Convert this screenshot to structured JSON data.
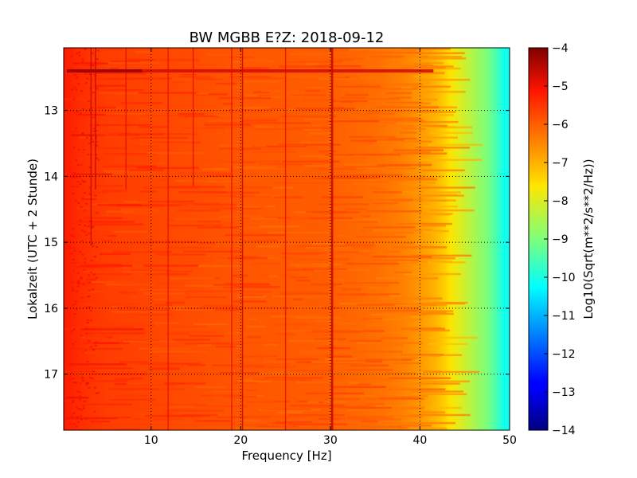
{
  "chart_data": {
    "type": "heatmap",
    "title": "BW MGBB E?Z: 2018-09-12",
    "xlabel": "Frequency [Hz]",
    "ylabel": "Lokalzeit (UTC + 2 Stunde)",
    "xlim": [
      0.25,
      50
    ],
    "ylim": [
      12.05,
      17.85
    ],
    "y_inverted": true,
    "x_ticks": [
      10,
      20,
      30,
      40,
      50
    ],
    "y_ticks": [
      13,
      14,
      15,
      16,
      17
    ],
    "grid": true,
    "colormap": "jet",
    "colorbar": {
      "label": "Log10(Sqrt(m**2/s**2/Hz))",
      "range": [
        -14,
        -4
      ],
      "ticks": [
        -4,
        -5,
        -6,
        -7,
        -8,
        -9,
        -10,
        -11,
        -12,
        -13,
        -14
      ]
    },
    "spectrum_profile": {
      "freq_hz": [
        0.5,
        2,
        5,
        10,
        20,
        30,
        35,
        38,
        40,
        42,
        44,
        46,
        48,
        49.5
      ],
      "log10_amplitude": [
        -5.2,
        -5.4,
        -5.6,
        -5.7,
        -5.9,
        -6.0,
        -6.2,
        -6.4,
        -6.7,
        -7.1,
        -7.8,
        -8.5,
        -9.2,
        -10.2
      ]
    },
    "narrowband_lines_hz": [
      3.3,
      3.8,
      7.2,
      11.9,
      14.7,
      19.0,
      20.2,
      25.0,
      30.2
    ],
    "broadband_event_time": 12.4
  }
}
